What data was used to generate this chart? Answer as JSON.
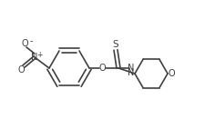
{
  "background_color": "#ffffff",
  "line_color": "#404040",
  "line_width": 1.2,
  "fig_width": 2.36,
  "fig_height": 1.53,
  "dpi": 100,
  "xlim": [
    0,
    236
  ],
  "ylim": [
    0,
    153
  ]
}
